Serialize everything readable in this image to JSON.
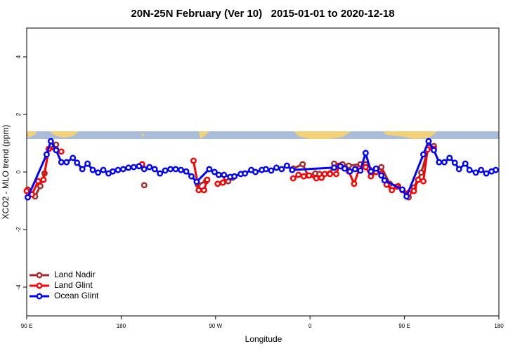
{
  "chart_data": {
    "type": "line",
    "title": "20N-25N February (Ver 10)   2015-01-01 to 2020-12-18",
    "x_label": "Longitude",
    "y_label": "XCO2 - MLO trend (ppm)",
    "xlim": [
      90,
      540
    ],
    "ylim": [
      -5,
      5
    ],
    "xticks": [
      {
        "value": 90,
        "label": "90 E"
      },
      {
        "value": 180,
        "label": "180"
      },
      {
        "value": 270,
        "label": "90 W"
      },
      {
        "value": 360,
        "label": "0"
      },
      {
        "value": 450,
        "label": "90 E"
      },
      {
        "value": 540,
        "label": "180"
      }
    ],
    "yticks": [
      -4,
      -2,
      0,
      2,
      4
    ],
    "legend": "bottom-left",
    "series": [
      {
        "name": "Land Nadir",
        "color": "#a52a2a",
        "x": [
          91,
          98,
          103,
          107,
          111,
          118,
          null,
          202,
          null,
          253,
          261,
          null,
          282,
          286,
          null,
          344,
          353,
          358,
          365,
          369,
          379,
          383,
          391,
          397,
          408,
          413,
          423,
          428,
          436,
          444,
          454,
          459,
          466,
          473,
          478
        ],
        "values": [
          -0.61,
          -0.85,
          -0.49,
          -0.05,
          0.8,
          0.95,
          null,
          -0.46,
          null,
          -0.44,
          -0.32,
          null,
          -0.32,
          -0.2,
          null,
          0.12,
          0.27,
          -0.12,
          -0.05,
          -0.07,
          -0.05,
          0.29,
          0.27,
          0.22,
          0.27,
          0.27,
          0,
          0.17,
          -0.41,
          -0.49,
          -0.88,
          -0.54,
          -0.02,
          0.85,
          0.9
        ]
      },
      {
        "name": "Land Glint",
        "color": "#ff0000",
        "x": [
          90,
          95,
          101,
          106,
          111,
          118,
          123,
          null,
          200,
          null,
          249,
          254,
          259,
          262,
          null,
          272,
          277,
          280,
          null,
          344,
          349,
          354,
          359,
          366,
          371,
          374,
          379,
          385,
          388,
          397,
          402,
          407,
          413,
          418,
          423,
          428,
          433,
          438,
          443,
          448,
          454,
          459,
          463,
          468,
          472,
          478
        ],
        "values": [
          -0.66,
          -0.78,
          -0.32,
          -0.27,
          0.8,
          0.78,
          0.71,
          null,
          0.27,
          null,
          0.39,
          -0.63,
          -0.63,
          -0.27,
          null,
          -0.41,
          -0.37,
          -0.2,
          null,
          -0.22,
          -0.1,
          -0.15,
          -0.12,
          -0.22,
          -0.2,
          -0.07,
          -0.07,
          -0.07,
          0.22,
          0.02,
          -0.41,
          0.12,
          0.17,
          -0.15,
          0,
          -0.05,
          -0.44,
          -0.63,
          -0.51,
          -0.63,
          -0.73,
          -0.66,
          -0.27,
          -0.32,
          0.78,
          0.8
        ]
      },
      {
        "name": "Ocean Glint",
        "color": "#0000ff",
        "x": [
          91,
          109,
          113,
          118,
          123,
          128,
          134,
          138,
          143,
          148,
          153,
          158,
          163,
          168,
          172,
          177,
          182,
          187,
          192,
          197,
          202,
          207,
          212,
          217,
          222,
          227,
          232,
          237,
          242,
          247,
          252,
          264,
          269,
          273,
          278,
          284,
          288,
          294,
          298,
          304,
          308,
          314,
          318,
          323,
          328,
          333,
          338,
          343,
          383,
          389,
          393,
          398,
          403,
          408,
          413,
          418,
          423,
          428,
          431,
          448,
          452,
          468,
          473,
          478,
          483,
          488,
          493,
          498,
          502,
          508,
          512,
          518,
          523,
          528,
          533,
          537
        ],
        "values": [
          -0.88,
          0.61,
          1.07,
          0.76,
          0.34,
          0.34,
          0.49,
          0.32,
          0.1,
          0.29,
          0.07,
          -0.02,
          0.07,
          -0.05,
          0.02,
          0.07,
          0.1,
          0.15,
          0.17,
          0.2,
          0.1,
          0.17,
          0.1,
          -0.05,
          0.05,
          0.1,
          0.1,
          0.07,
          0.02,
          -0.15,
          -0.34,
          0.1,
          0,
          -0.1,
          -0.1,
          -0.17,
          -0.15,
          -0.07,
          -0.05,
          0.07,
          0,
          0.07,
          0.1,
          0.05,
          0.15,
          0.1,
          0.22,
          0.07,
          0.15,
          0.2,
          0.12,
          0.02,
          0.1,
          0.05,
          0.66,
          0.02,
          0.12,
          -0.12,
          -0.29,
          -0.61,
          -0.85,
          0.61,
          1.07,
          0.76,
          0.34,
          0.34,
          0.49,
          0.32,
          0.1,
          0.29,
          0.07,
          -0.02,
          0.07,
          -0.05,
          0.02,
          0.07
        ]
      }
    ]
  }
}
